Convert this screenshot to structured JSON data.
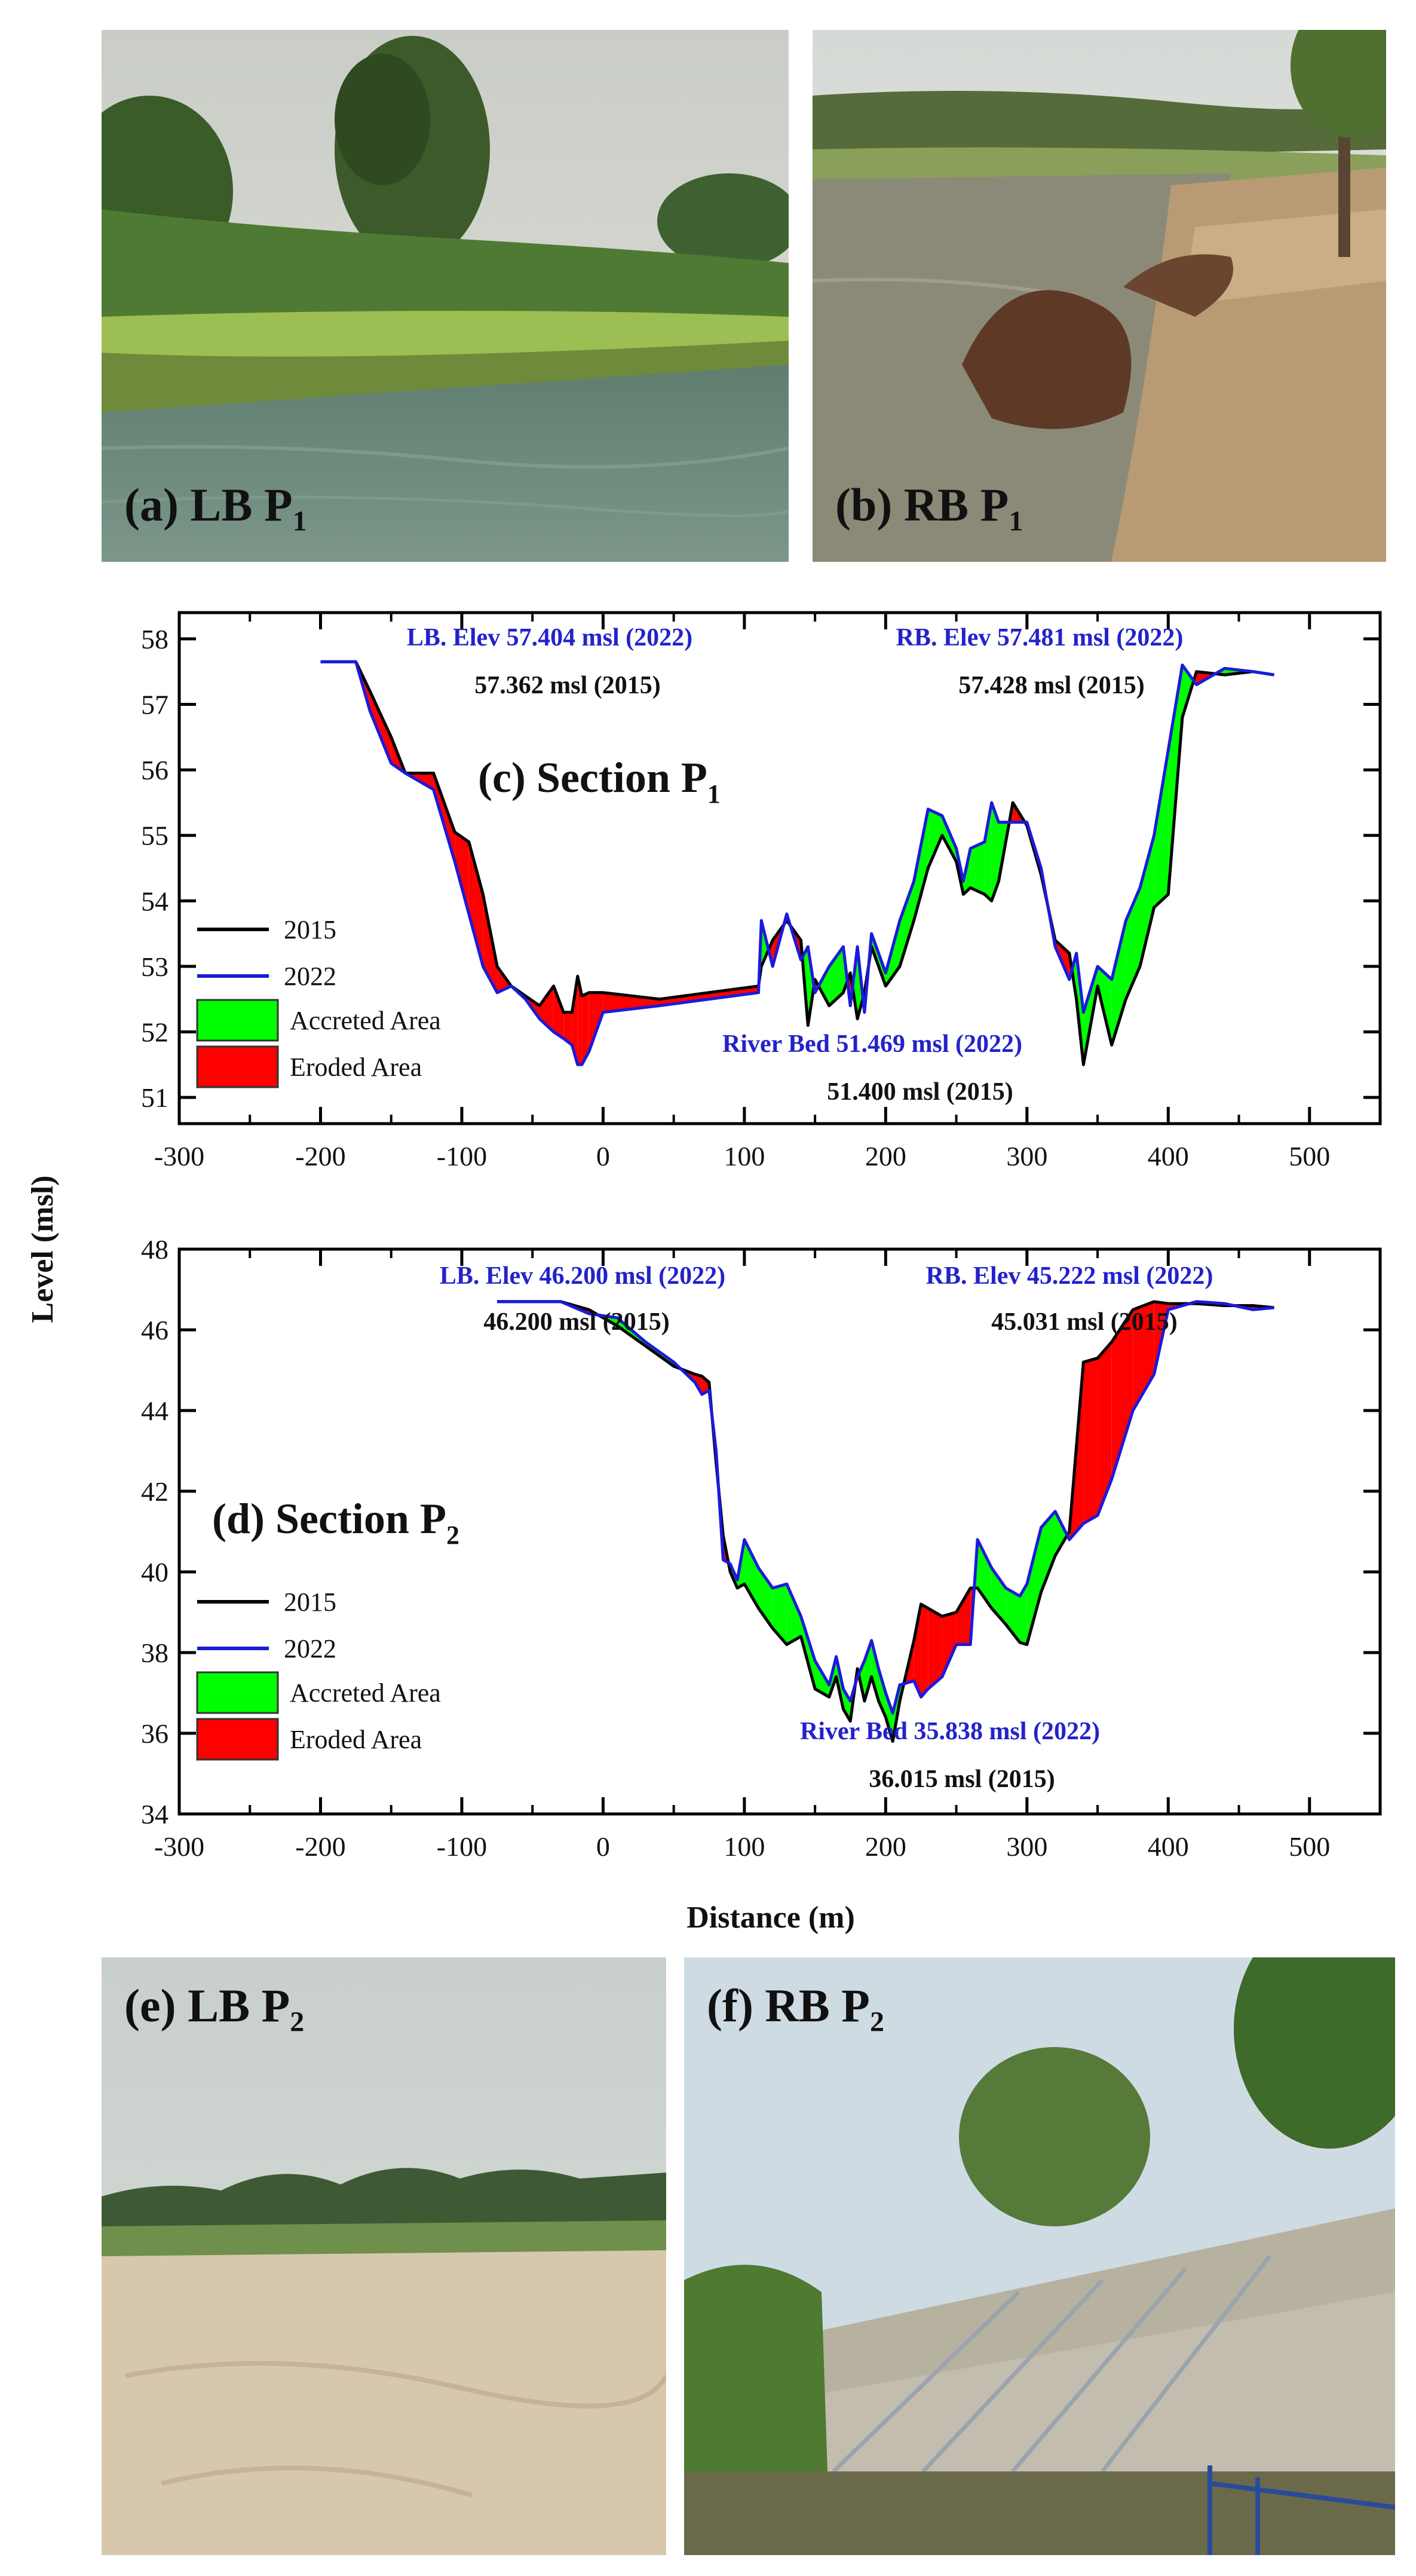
{
  "photos": {
    "a": {
      "label": "(a) LB P",
      "sub": "1",
      "icon": "riverbank-photo-icon"
    },
    "b": {
      "label": "(b) RB P",
      "sub": "1",
      "icon": "riverbank-photo-icon"
    },
    "e": {
      "label": "(e) LB P",
      "sub": "2",
      "icon": "sandbar-photo-icon"
    },
    "f": {
      "label": "(f) RB P",
      "sub": "2",
      "icon": "gabion-wall-photo-icon"
    }
  },
  "shared_axes": {
    "ylabel": "Level (msl)",
    "xlabel": "Distance (m)"
  },
  "chart_data": [
    {
      "type": "area",
      "title_main": "(c) Section P",
      "title_sub": "1",
      "xlabel": "Distance (m)",
      "ylabel": "Level (msl)",
      "xlim": [
        -300,
        550
      ],
      "ylim": [
        50.6,
        58.4
      ],
      "xticks": [
        -300,
        -200,
        -100,
        0,
        100,
        200,
        300,
        400,
        500
      ],
      "yticks": [
        51,
        52,
        53,
        54,
        55,
        56,
        57,
        58
      ],
      "legend": [
        "2015",
        "2022",
        "Accreted Area",
        "Eroded Area"
      ],
      "legend_position": "bottom-left",
      "colors": {
        "y2015": "#000000",
        "y2022": "#1a1adc",
        "accreted": "#00ff00",
        "eroded": "#ff0000",
        "annot_blue": "#2222cc"
      },
      "annotations": {
        "lb_2022": "LB. Elev 57.404 msl (2022)",
        "lb_2015": "57.362 msl (2015)",
        "rb_2022": "RB. Elev 57.481 msl (2022)",
        "rb_2015": "57.428 msl (2015)",
        "bed_2022": "River Bed 51.469 msl (2022)",
        "bed_2015": "51.400 msl (2015)"
      },
      "x": [
        -200,
        -175,
        -165,
        -150,
        -140,
        -120,
        -105,
        -95,
        -85,
        -75,
        -65,
        -55,
        -45,
        -35,
        -28,
        -22,
        -18,
        -15,
        -10,
        0,
        40,
        110,
        112,
        120,
        130,
        140,
        145,
        150,
        160,
        170,
        175,
        180,
        185,
        190,
        200,
        210,
        220,
        230,
        240,
        250,
        255,
        260,
        270,
        275,
        280,
        290,
        300,
        310,
        320,
        330,
        335,
        340,
        350,
        360,
        370,
        380,
        390,
        400,
        410,
        420,
        440,
        460,
        475
      ],
      "series": [
        {
          "name": "2015",
          "values": [
            57.65,
            57.65,
            57.2,
            56.5,
            55.95,
            55.95,
            55.05,
            54.9,
            54.1,
            53.0,
            52.7,
            52.55,
            52.4,
            52.7,
            52.3,
            52.3,
            52.85,
            52.55,
            52.6,
            52.6,
            52.5,
            52.7,
            53.0,
            53.4,
            53.7,
            53.4,
            52.1,
            52.8,
            52.4,
            52.6,
            52.9,
            52.2,
            52.6,
            53.3,
            52.7,
            53.0,
            53.7,
            54.5,
            55.0,
            54.6,
            54.1,
            54.2,
            54.1,
            54.0,
            54.3,
            55.5,
            55.15,
            54.4,
            53.4,
            53.2,
            52.5,
            51.5,
            52.7,
            51.8,
            52.5,
            53.0,
            53.9,
            54.1,
            56.8,
            57.5,
            57.45,
            57.5,
            57.45
          ]
        },
        {
          "name": "2022",
          "values": [
            57.65,
            57.65,
            56.9,
            56.1,
            55.95,
            55.7,
            54.6,
            53.8,
            53.0,
            52.6,
            52.7,
            52.5,
            52.2,
            52.0,
            51.9,
            51.8,
            51.5,
            51.5,
            51.7,
            52.3,
            52.4,
            52.6,
            53.7,
            53.0,
            53.8,
            53.1,
            53.3,
            52.6,
            53.0,
            53.3,
            52.4,
            53.3,
            52.3,
            53.5,
            52.9,
            53.7,
            54.3,
            55.4,
            55.3,
            54.8,
            54.3,
            54.8,
            54.9,
            55.5,
            55.2,
            55.2,
            55.2,
            54.5,
            53.3,
            52.8,
            53.2,
            52.3,
            53.0,
            52.8,
            53.7,
            54.2,
            55.0,
            56.3,
            57.6,
            57.3,
            57.55,
            57.5,
            57.45
          ]
        }
      ]
    },
    {
      "type": "area",
      "title_main": "(d) Section P",
      "title_sub": "2",
      "xlabel": "Distance (m)",
      "ylabel": "Level (msl)",
      "xlim": [
        -300,
        550
      ],
      "ylim": [
        34,
        48
      ],
      "xticks": [
        -300,
        -200,
        -100,
        0,
        100,
        200,
        300,
        400,
        500
      ],
      "yticks": [
        34,
        36,
        38,
        40,
        42,
        44,
        46,
        48
      ],
      "legend": [
        "2015",
        "2022",
        "Accreted Area",
        "Eroded Area"
      ],
      "legend_position": "bottom-left",
      "colors": {
        "y2015": "#000000",
        "y2022": "#1a1adc",
        "accreted": "#00ff00",
        "eroded": "#ff0000",
        "annot_blue": "#2222cc"
      },
      "annotations": {
        "lb_2022": "LB. Elev 46.200 msl (2022)",
        "lb_2015": "46.200 msl (2015)",
        "rb_2022": "RB. Elev 45.222 msl (2022)",
        "rb_2015": "45.031 msl (2015)",
        "bed_2022": "River Bed 35.838 msl (2022)",
        "bed_2015": "36.015 msl (2015)"
      },
      "x": [
        -75,
        -50,
        -30,
        -10,
        10,
        30,
        50,
        65,
        70,
        75,
        80,
        85,
        90,
        95,
        100,
        110,
        120,
        130,
        140,
        150,
        160,
        165,
        170,
        175,
        180,
        185,
        190,
        195,
        200,
        205,
        210,
        220,
        225,
        230,
        240,
        250,
        260,
        265,
        275,
        285,
        295,
        300,
        310,
        320,
        330,
        340,
        350,
        360,
        375,
        390,
        400,
        420,
        440,
        460,
        475
      ],
      "series": [
        {
          "name": "2015",
          "values": [
            46.7,
            46.7,
            46.7,
            46.5,
            46.1,
            45.6,
            45.1,
            44.9,
            44.85,
            44.7,
            42.7,
            40.9,
            40.0,
            39.6,
            39.7,
            39.1,
            38.6,
            38.2,
            38.4,
            37.1,
            36.9,
            37.4,
            36.6,
            36.3,
            37.6,
            36.8,
            37.4,
            36.8,
            36.4,
            35.8,
            36.8,
            38.3,
            39.2,
            39.1,
            38.9,
            39.0,
            39.6,
            39.6,
            39.1,
            38.7,
            38.25,
            38.2,
            39.5,
            40.4,
            41.0,
            45.2,
            45.3,
            45.7,
            46.5,
            46.7,
            46.65,
            46.65,
            46.6,
            46.6,
            46.55
          ]
        },
        {
          "name": "2022",
          "values": [
            46.7,
            46.7,
            46.7,
            46.4,
            46.3,
            45.7,
            45.2,
            44.7,
            44.4,
            44.5,
            43.0,
            40.3,
            40.2,
            39.8,
            40.8,
            40.1,
            39.6,
            39.7,
            38.9,
            37.8,
            37.2,
            37.9,
            37.1,
            36.8,
            37.4,
            37.8,
            38.3,
            37.6,
            37.0,
            36.5,
            37.2,
            37.3,
            36.9,
            37.1,
            37.4,
            38.2,
            38.2,
            40.8,
            40.1,
            39.6,
            39.4,
            39.7,
            41.1,
            41.5,
            40.8,
            41.2,
            41.4,
            42.3,
            44.0,
            44.9,
            46.5,
            46.7,
            46.65,
            46.5,
            46.55
          ]
        }
      ]
    }
  ]
}
